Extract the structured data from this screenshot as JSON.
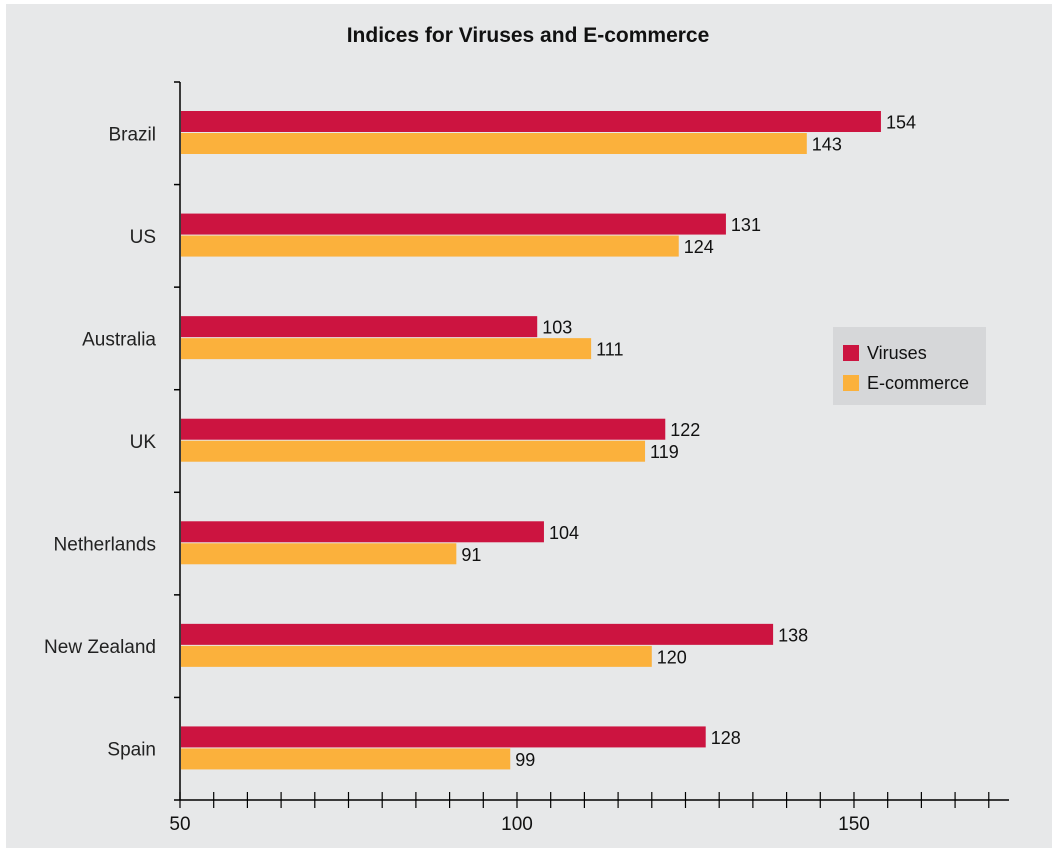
{
  "chart_data": {
    "type": "bar",
    "orientation": "horizontal",
    "title": "Indices for Viruses and E-commerce",
    "xlabel": "",
    "ylabel": "",
    "categories": [
      "Brazil",
      "US",
      "Australia",
      "UK",
      "Netherlands",
      "New Zealand",
      "Spain"
    ],
    "series": [
      {
        "name": "Viruses",
        "color": "#cc1440",
        "values": [
          154,
          131,
          103,
          122,
          104,
          138,
          128
        ]
      },
      {
        "name": "E-commerce",
        "color": "#fbb13c",
        "values": [
          143,
          124,
          111,
          119,
          91,
          120,
          99
        ]
      }
    ],
    "xlim": [
      50,
      173
    ],
    "x_ticks": [
      50,
      100,
      150
    ],
    "x_minor_step": 5,
    "grid": false,
    "legend_position": "right",
    "background": "#e7e8e9"
  }
}
